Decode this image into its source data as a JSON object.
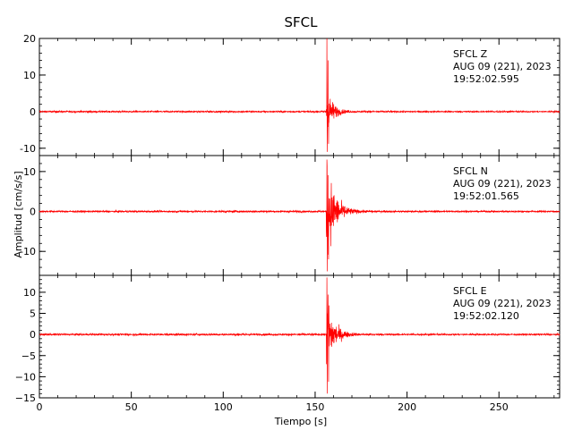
{
  "chart_data": {
    "type": "line",
    "title": "SFCL",
    "xlabel": "Tiempo [s]",
    "ylabel": "Amplitud [cm/s/s]",
    "xlim": [
      0,
      283
    ],
    "x_ticks": [
      0,
      50,
      100,
      150,
      200,
      250
    ],
    "line_color": "#ff0000",
    "panels": [
      {
        "station": "SFCL",
        "component": "Z",
        "date": "AUG 09 (221), 2023",
        "time": "19:52:02.595",
        "ylim": [
          -12,
          20
        ],
        "y_ticks": [
          20,
          10,
          0,
          -10
        ],
        "y_tick_labels": [
          "20",
          "10",
          "0",
          "-10"
        ],
        "onset_s": 156,
        "peak_pos": 20,
        "peak_neg": -11,
        "coda_amp": 6,
        "decay_s": 3.2
      },
      {
        "station": "SFCL",
        "component": "N",
        "date": "AUG 09 (221), 2023",
        "time": "19:52:01.565",
        "ylim": [
          -16,
          14
        ],
        "y_ticks": [
          10,
          0,
          -10
        ],
        "y_tick_labels": [
          "10",
          "0",
          "-10"
        ],
        "onset_s": 156,
        "peak_pos": 13,
        "peak_neg": -15,
        "coda_amp": 10,
        "decay_s": 4.5
      },
      {
        "station": "SFCL",
        "component": "E",
        "date": "AUG 09 (221), 2023",
        "time": "19:52:02.120",
        "ylim": [
          -15,
          14
        ],
        "y_ticks": [
          10,
          5,
          0,
          -5,
          -10,
          -15
        ],
        "y_tick_labels": [
          "10",
          "5",
          "0",
          "−5",
          "−10",
          "−15"
        ],
        "onset_s": 156,
        "peak_pos": 13.5,
        "peak_neg": -14,
        "coda_amp": 7,
        "decay_s": 4.0
      }
    ]
  }
}
